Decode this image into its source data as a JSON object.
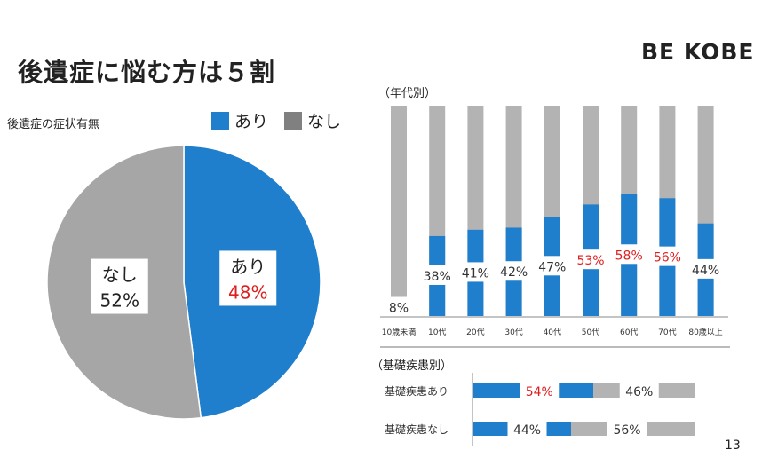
{
  "title": "後遺症に悩む方は５割",
  "brand": "BE KOBE",
  "page_number": "13",
  "colors": {
    "ari": "#1f7fcc",
    "nashi": "#a6a6a6",
    "bar_bg": "#b3b3b3",
    "highlight": "#e01e1e"
  },
  "chart_data": [
    {
      "type": "pie",
      "subtitle": "後遺症の症状有無",
      "legend": [
        "あり",
        "なし"
      ],
      "slices": [
        {
          "name": "あり",
          "value": 48,
          "label": "48%"
        },
        {
          "name": "なし",
          "value": 52,
          "label": "52%"
        }
      ]
    },
    {
      "type": "bar",
      "title": "（年代別）",
      "categories": [
        "10歳未満",
        "10代",
        "20代",
        "30代",
        "40代",
        "50代",
        "60代",
        "70代",
        "80歳以上"
      ],
      "values": [
        8,
        38,
        41,
        42,
        47,
        53,
        58,
        56,
        44
      ],
      "labels": [
        "8%",
        "38%",
        "41%",
        "42%",
        "47%",
        "53%",
        "58%",
        "56%",
        "44%"
      ],
      "highlighted": [
        false,
        false,
        false,
        false,
        false,
        true,
        true,
        true,
        false
      ],
      "ylim": [
        0,
        100
      ]
    },
    {
      "type": "bar",
      "orientation": "horizontal-stacked",
      "title": "（基礎疾患別）",
      "categories": [
        "基礎疾患あり",
        "基礎疾患なし"
      ],
      "series": [
        {
          "name": "あり",
          "values": [
            54,
            44
          ],
          "labels": [
            "54%",
            "44%"
          ],
          "highlighted": [
            true,
            false
          ]
        },
        {
          "name": "なし",
          "values": [
            46,
            56
          ],
          "labels": [
            "46%",
            "56%"
          ]
        }
      ]
    }
  ]
}
